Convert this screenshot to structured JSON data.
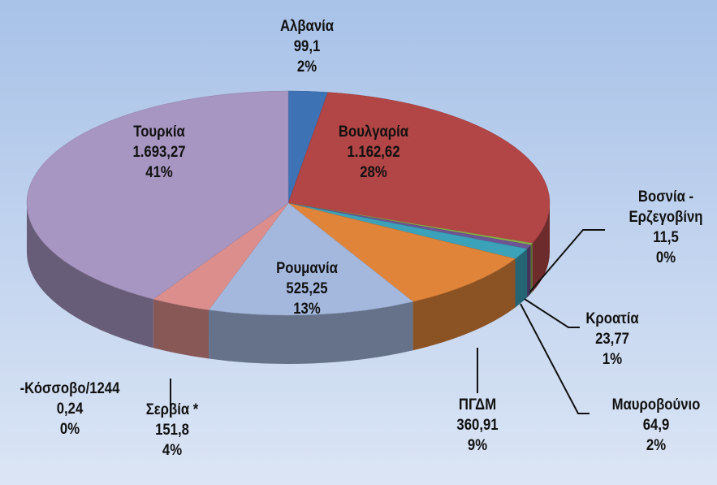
{
  "chart_data": {
    "type": "pie3d",
    "categories": [
      "Αλβανία",
      "Βουλγαρία",
      "Βοσνία - Ερζεγοβίνη",
      "Κροατία",
      "Μαυροβούνιο",
      "ΠΓΔΜ",
      "Ρουμανία",
      "Σερβία *",
      "-Κόσσοβο/1244",
      "Τουρκία"
    ],
    "values": [
      99.1,
      1162.62,
      11.5,
      23.77,
      64.9,
      360.91,
      525.25,
      151.8,
      0.24,
      1693.27
    ],
    "value_labels": [
      "99,1",
      "1.162,62",
      "11,5",
      "23,77",
      "64,9",
      "360,91",
      "525,25",
      "151,8",
      "0,24",
      "1.693,27"
    ],
    "percent_labels": [
      "2%",
      "28%",
      "0%",
      "1%",
      "2%",
      "9%",
      "13%",
      "4%",
      "0%",
      "41%"
    ],
    "colors": [
      "#3d72b4",
      "#b24545",
      "#8cae4a",
      "#6e5494",
      "#3ba2ba",
      "#e0843a",
      "#a4b8de",
      "#dc8e8c",
      "#c9a9a8",
      "#a896c2"
    ]
  }
}
